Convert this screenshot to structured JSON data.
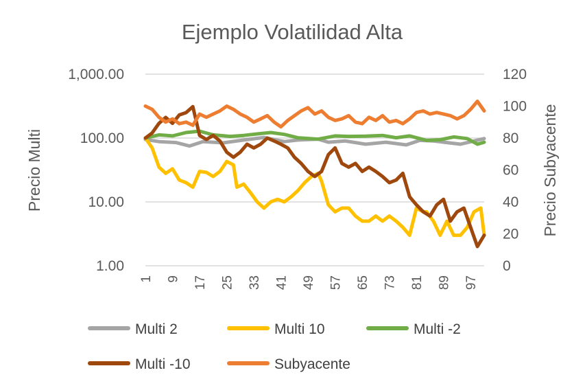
{
  "chart_data": {
    "type": "line",
    "title": "Ejemplo Volatilidad Alta",
    "ylabel": "Precio Multi",
    "y2label": "Precio Subyacente",
    "xlabel": "",
    "y_scale": "log",
    "ylim": [
      1,
      1000
    ],
    "y_ticks": [
      1,
      10,
      100,
      1000
    ],
    "y_tick_labels": [
      "1.00",
      "10.00",
      "100.00",
      "1,000.00"
    ],
    "y2lim": [
      0,
      120
    ],
    "y2_ticks": [
      0,
      20,
      40,
      60,
      80,
      100,
      120
    ],
    "y2_tick_labels": [
      "0",
      "20",
      "40",
      "60",
      "80",
      "100",
      "120"
    ],
    "xlim": [
      1,
      101
    ],
    "x_ticks": [
      1,
      9,
      17,
      25,
      33,
      41,
      49,
      57,
      65,
      73,
      81,
      89,
      97
    ],
    "x_tick_labels": [
      "1",
      "9",
      "17",
      "25",
      "33",
      "41",
      "49",
      "57",
      "65",
      "73",
      "81",
      "89",
      "97"
    ],
    "grid": true,
    "legend_position": "bottom",
    "series": [
      {
        "name": "Multi 2",
        "color": "#a5a5a5",
        "axis": "left",
        "points": [
          [
            1,
            95
          ],
          [
            5,
            88
          ],
          [
            10,
            85
          ],
          [
            14,
            75
          ],
          [
            18,
            88
          ],
          [
            24,
            84
          ],
          [
            30,
            93
          ],
          [
            36,
            102
          ],
          [
            42,
            88
          ],
          [
            46,
            93
          ],
          [
            52,
            96
          ],
          [
            55,
            86
          ],
          [
            60,
            90
          ],
          [
            66,
            80
          ],
          [
            72,
            86
          ],
          [
            78,
            78
          ],
          [
            82,
            92
          ],
          [
            86,
            90
          ],
          [
            90,
            85
          ],
          [
            94,
            80
          ],
          [
            98,
            90
          ],
          [
            101,
            98
          ]
        ]
      },
      {
        "name": "Multi 10",
        "color": "#ffc000",
        "axis": "left",
        "points": [
          [
            1,
            100
          ],
          [
            3,
            70
          ],
          [
            5,
            35
          ],
          [
            7,
            28
          ],
          [
            9,
            33
          ],
          [
            11,
            22
          ],
          [
            13,
            20
          ],
          [
            15,
            17
          ],
          [
            17,
            30
          ],
          [
            19,
            29
          ],
          [
            21,
            25
          ],
          [
            23,
            30
          ],
          [
            25,
            43
          ],
          [
            27,
            38
          ],
          [
            28,
            17
          ],
          [
            30,
            19
          ],
          [
            32,
            14
          ],
          [
            34,
            10
          ],
          [
            36,
            8
          ],
          [
            38,
            10
          ],
          [
            40,
            11
          ],
          [
            42,
            10
          ],
          [
            44,
            12
          ],
          [
            46,
            15
          ],
          [
            48,
            20
          ],
          [
            50,
            25
          ],
          [
            52,
            28
          ],
          [
            53,
            21
          ],
          [
            55,
            9
          ],
          [
            57,
            7
          ],
          [
            59,
            8
          ],
          [
            61,
            8
          ],
          [
            63,
            6
          ],
          [
            65,
            5
          ],
          [
            67,
            5
          ],
          [
            69,
            6
          ],
          [
            71,
            5
          ],
          [
            73,
            6
          ],
          [
            75,
            5
          ],
          [
            77,
            4
          ],
          [
            79,
            3
          ],
          [
            81,
            8
          ],
          [
            83,
            7
          ],
          [
            84,
            7
          ],
          [
            86,
            5
          ],
          [
            88,
            3
          ],
          [
            90,
            5
          ],
          [
            92,
            3
          ],
          [
            94,
            3
          ],
          [
            96,
            4
          ],
          [
            98,
            7
          ],
          [
            100,
            8
          ],
          [
            101,
            3
          ]
        ]
      },
      {
        "name": "Multi -2",
        "color": "#70ad47",
        "axis": "left",
        "points": [
          [
            1,
            100
          ],
          [
            5,
            112
          ],
          [
            9,
            108
          ],
          [
            13,
            122
          ],
          [
            17,
            128
          ],
          [
            21,
            112
          ],
          [
            26,
            106
          ],
          [
            30,
            110
          ],
          [
            34,
            116
          ],
          [
            38,
            122
          ],
          [
            42,
            114
          ],
          [
            46,
            101
          ],
          [
            52,
            96
          ],
          [
            57,
            108
          ],
          [
            61,
            106
          ],
          [
            66,
            107
          ],
          [
            71,
            110
          ],
          [
            75,
            101
          ],
          [
            79,
            108
          ],
          [
            84,
            92
          ],
          [
            88,
            94
          ],
          [
            92,
            104
          ],
          [
            96,
            98
          ],
          [
            99,
            80
          ],
          [
            101,
            86
          ]
        ]
      },
      {
        "name": "Multi -10",
        "color": "#9e480e",
        "axis": "left",
        "points": [
          [
            1,
            100
          ],
          [
            3,
            120
          ],
          [
            5,
            170
          ],
          [
            7,
            210
          ],
          [
            9,
            170
          ],
          [
            11,
            230
          ],
          [
            13,
            250
          ],
          [
            15,
            310
          ],
          [
            17,
            110
          ],
          [
            19,
            95
          ],
          [
            21,
            110
          ],
          [
            23,
            90
          ],
          [
            25,
            60
          ],
          [
            27,
            50
          ],
          [
            29,
            60
          ],
          [
            31,
            80
          ],
          [
            33,
            70
          ],
          [
            35,
            80
          ],
          [
            37,
            100
          ],
          [
            39,
            90
          ],
          [
            41,
            80
          ],
          [
            43,
            70
          ],
          [
            45,
            50
          ],
          [
            47,
            40
          ],
          [
            49,
            30
          ],
          [
            51,
            25
          ],
          [
            53,
            30
          ],
          [
            55,
            55
          ],
          [
            57,
            70
          ],
          [
            59,
            40
          ],
          [
            61,
            35
          ],
          [
            63,
            40
          ],
          [
            65,
            30
          ],
          [
            67,
            35
          ],
          [
            69,
            30
          ],
          [
            71,
            25
          ],
          [
            73,
            20
          ],
          [
            75,
            22
          ],
          [
            77,
            28
          ],
          [
            79,
            12
          ],
          [
            81,
            9
          ],
          [
            83,
            7
          ],
          [
            85,
            6
          ],
          [
            87,
            9
          ],
          [
            89,
            11
          ],
          [
            91,
            5
          ],
          [
            93,
            7
          ],
          [
            95,
            8
          ],
          [
            97,
            4
          ],
          [
            99,
            2
          ],
          [
            101,
            3
          ]
        ]
      },
      {
        "name": "Subyacente",
        "color": "#ed7d31",
        "axis": "right",
        "points": [
          [
            1,
            100
          ],
          [
            3,
            98
          ],
          [
            5,
            93
          ],
          [
            7,
            90
          ],
          [
            9,
            92
          ],
          [
            11,
            89
          ],
          [
            13,
            90
          ],
          [
            15,
            88
          ],
          [
            17,
            95
          ],
          [
            19,
            93
          ],
          [
            21,
            95
          ],
          [
            23,
            97
          ],
          [
            25,
            100
          ],
          [
            27,
            98
          ],
          [
            29,
            95
          ],
          [
            31,
            93
          ],
          [
            33,
            90
          ],
          [
            35,
            92
          ],
          [
            37,
            94
          ],
          [
            39,
            90
          ],
          [
            41,
            87
          ],
          [
            43,
            91
          ],
          [
            45,
            94
          ],
          [
            47,
            97
          ],
          [
            49,
            99
          ],
          [
            51,
            95
          ],
          [
            53,
            97
          ],
          [
            55,
            93
          ],
          [
            57,
            91
          ],
          [
            59,
            92
          ],
          [
            61,
            94
          ],
          [
            63,
            90
          ],
          [
            65,
            89
          ],
          [
            67,
            93
          ],
          [
            69,
            91
          ],
          [
            71,
            94
          ],
          [
            73,
            90
          ],
          [
            75,
            91
          ],
          [
            77,
            89
          ],
          [
            79,
            92
          ],
          [
            81,
            96
          ],
          [
            83,
            97
          ],
          [
            85,
            95
          ],
          [
            87,
            96
          ],
          [
            89,
            95
          ],
          [
            91,
            94
          ],
          [
            93,
            92
          ],
          [
            95,
            94
          ],
          [
            97,
            98
          ],
          [
            99,
            103
          ],
          [
            101,
            97
          ]
        ]
      }
    ]
  }
}
